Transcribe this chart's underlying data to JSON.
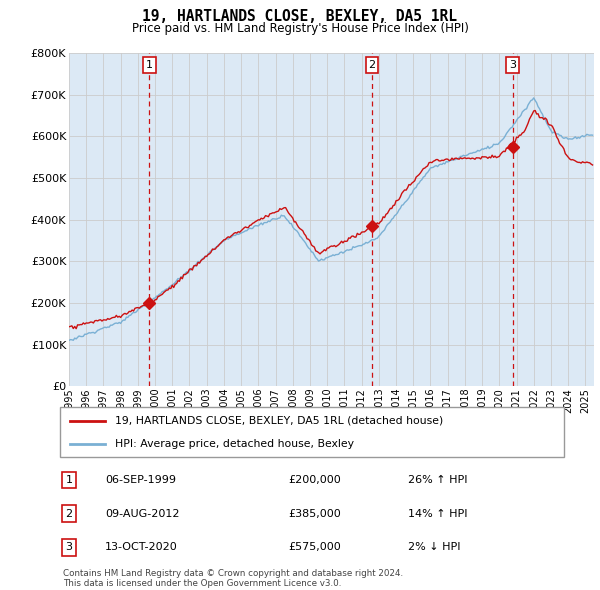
{
  "title": "19, HARTLANDS CLOSE, BEXLEY, DA5 1RL",
  "subtitle": "Price paid vs. HM Land Registry's House Price Index (HPI)",
  "ylim": [
    0,
    800000
  ],
  "yticks": [
    0,
    100000,
    200000,
    300000,
    400000,
    500000,
    600000,
    700000,
    800000
  ],
  "ytick_labels": [
    "£0",
    "£100K",
    "£200K",
    "£300K",
    "£400K",
    "£500K",
    "£600K",
    "£700K",
    "£800K"
  ],
  "xlim_start": 1995.0,
  "xlim_end": 2025.5,
  "hpi_color": "#7ab0d4",
  "price_color": "#cc1111",
  "grid_color": "#cccccc",
  "chart_bg": "#dce9f5",
  "purchases": [
    {
      "date_label": "06-SEP-1999",
      "year": 1999.67,
      "price": 200000,
      "pct": "26%",
      "dir": "↑",
      "num": 1
    },
    {
      "date_label": "09-AUG-2012",
      "year": 2012.6,
      "price": 385000,
      "pct": "14%",
      "dir": "↑",
      "num": 2
    },
    {
      "date_label": "13-OCT-2020",
      "year": 2020.78,
      "price": 575000,
      "pct": "2%",
      "dir": "↓",
      "num": 3
    }
  ],
  "legend_line1": "19, HARTLANDS CLOSE, BEXLEY, DA5 1RL (detached house)",
  "legend_line2": "HPI: Average price, detached house, Bexley",
  "footer1": "Contains HM Land Registry data © Crown copyright and database right 2024.",
  "footer2": "This data is licensed under the Open Government Licence v3.0."
}
